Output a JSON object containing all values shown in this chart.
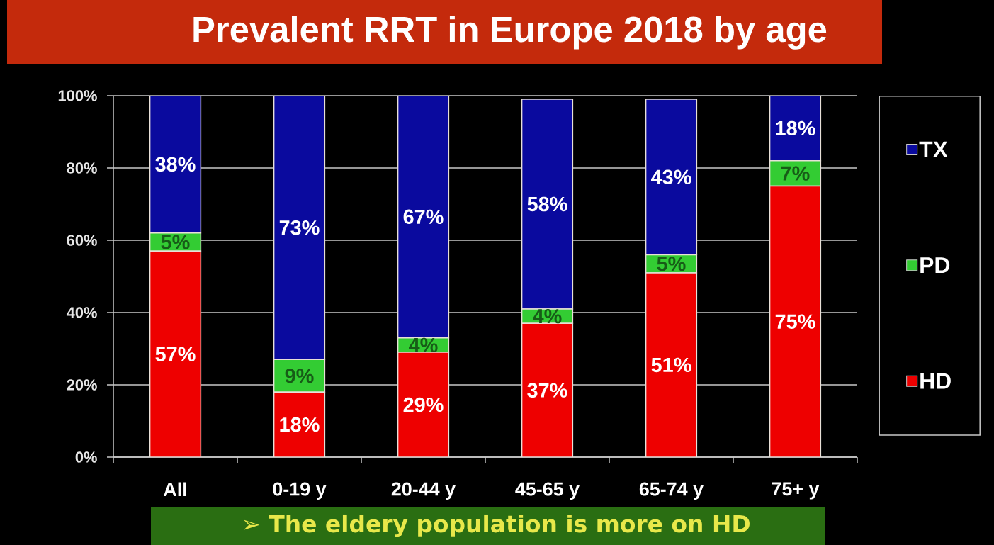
{
  "chart_data": {
    "type": "bar",
    "title": "Prevalent RRT in Europe 2018 by age",
    "categories": [
      "All",
      "0-19 y",
      "20-44 y",
      "45-65 y",
      "65-74 y",
      "75+ y"
    ],
    "stacked": true,
    "series": [
      {
        "name": "HD",
        "color": "#ee0000",
        "values": [
          57,
          18,
          29,
          37,
          51,
          75
        ],
        "value_labels": [
          "57%",
          "18%",
          "29%",
          "37%",
          "51%",
          "75%"
        ]
      },
      {
        "name": "PD",
        "color": "#33cc33",
        "values": [
          5,
          9,
          4,
          4,
          5,
          7
        ],
        "value_labels": [
          "5%",
          "9%",
          "4%",
          "4%",
          "5%",
          "7%"
        ]
      },
      {
        "name": "TX",
        "color": "#0a0a9e",
        "values": [
          38,
          73,
          67,
          58,
          43,
          18
        ],
        "value_labels": [
          "38%",
          "73%",
          "67%",
          "58%",
          "43%",
          "18%"
        ]
      }
    ],
    "ylim": [
      0,
      100
    ],
    "yticks": [
      {
        "value": 0,
        "label": "0%"
      },
      {
        "value": 20,
        "label": "20%"
      },
      {
        "value": 40,
        "label": "40%"
      },
      {
        "value": 60,
        "label": "60%"
      },
      {
        "value": 80,
        "label": "80%"
      },
      {
        "value": 100,
        "label": "100%"
      }
    ],
    "grid": "y",
    "legend": "right",
    "annotations": [
      "➢ The eldery population is more on HD"
    ]
  }
}
